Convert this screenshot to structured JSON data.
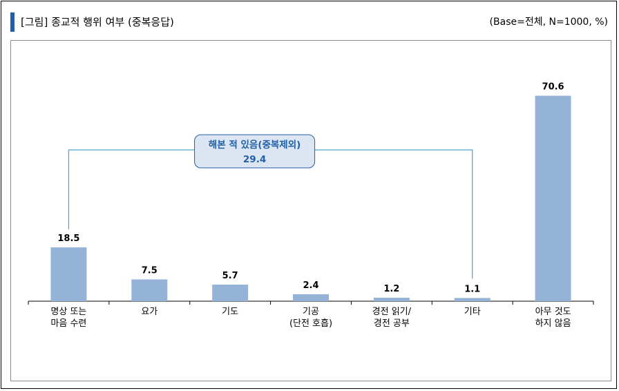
{
  "header": {
    "title": "[그림] 종교적 행위 여부 (중복응답)",
    "base_note": "(Base=전체, N=1000, %)"
  },
  "colors": {
    "bar": "#95b3d7",
    "accent": "#1f5fa8",
    "callout_fill": "#dce6f2",
    "bracket": "#4aa3c9"
  },
  "chart_data": {
    "type": "bar",
    "categories": [
      [
        "명상 또는",
        "마음 수련"
      ],
      [
        "요가"
      ],
      [
        "기도"
      ],
      [
        "기공",
        "(단전 호흡)"
      ],
      [
        "경전 읽기/",
        "경전 공부"
      ],
      [
        "기타"
      ],
      [
        "아무 것도",
        "하지 않음"
      ]
    ],
    "values": [
      18.5,
      7.5,
      5.7,
      2.4,
      1.2,
      1.1,
      70.6
    ],
    "value_labels": [
      "18.5",
      "7.5",
      "5.7",
      "2.4",
      "1.2",
      "1.1",
      "70.6"
    ],
    "ylim": [
      0,
      80
    ],
    "grid": false,
    "annotation": {
      "label": "해본 적 있음(중복제외)",
      "value": "29.4",
      "spans_categories": [
        0,
        5
      ]
    }
  }
}
